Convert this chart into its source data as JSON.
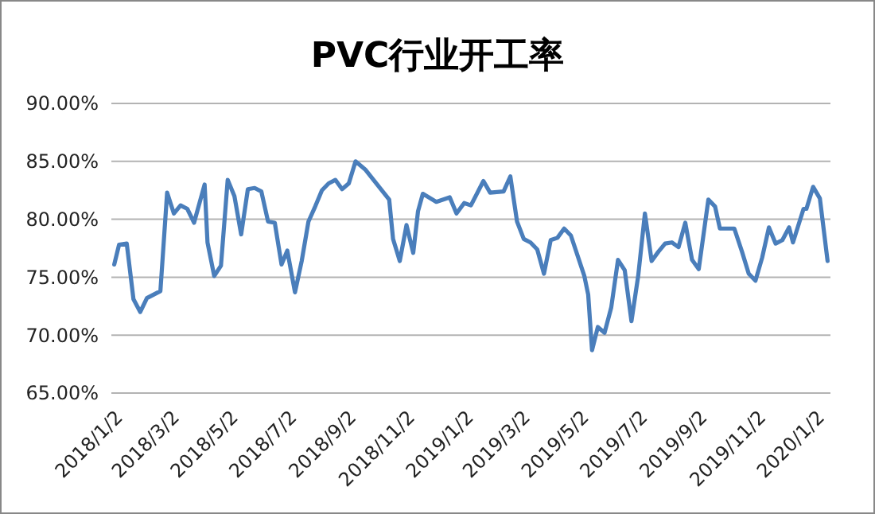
{
  "chart_data": {
    "type": "line",
    "title": "PVC行业开工率",
    "x": [
      "2018-01-02",
      "2018-01-07",
      "2018-01-15",
      "2018-01-22",
      "2018-01-29",
      "2018-02-05",
      "2018-02-19",
      "2018-02-26",
      "2018-03-05",
      "2018-03-12",
      "2018-03-19",
      "2018-03-26",
      "2018-04-06",
      "2018-04-09",
      "2018-04-16",
      "2018-04-23",
      "2018-04-30",
      "2018-05-07",
      "2018-05-14",
      "2018-05-21",
      "2018-05-28",
      "2018-06-04",
      "2018-06-11",
      "2018-06-18",
      "2018-06-25",
      "2018-07-01",
      "2018-07-09",
      "2018-07-16",
      "2018-07-23",
      "2018-07-30",
      "2018-08-06",
      "2018-08-13",
      "2018-08-20",
      "2018-08-27",
      "2018-09-03",
      "2018-09-10",
      "2018-09-20",
      "2018-10-15",
      "2018-10-19",
      "2018-10-26",
      "2018-11-02",
      "2018-11-09",
      "2018-11-14",
      "2018-11-19",
      "2018-12-03",
      "2018-12-17",
      "2018-12-24",
      "2019-01-01",
      "2019-01-08",
      "2019-01-21",
      "2019-01-28",
      "2019-02-11",
      "2019-02-18",
      "2019-02-25",
      "2019-03-04",
      "2019-03-11",
      "2019-03-18",
      "2019-03-25",
      "2019-04-01",
      "2019-04-08",
      "2019-04-15",
      "2019-04-22",
      "2019-05-06",
      "2019-05-10",
      "2019-05-14",
      "2019-05-20",
      "2019-05-27",
      "2019-06-03",
      "2019-06-10",
      "2019-06-17",
      "2019-06-24",
      "2019-07-01",
      "2019-07-08",
      "2019-07-15",
      "2019-07-22",
      "2019-07-29",
      "2019-08-05",
      "2019-08-12",
      "2019-08-19",
      "2019-08-26",
      "2019-09-02",
      "2019-09-12",
      "2019-09-19",
      "2019-09-24",
      "2019-10-09",
      "2019-10-17",
      "2019-10-24",
      "2019-10-31",
      "2019-11-07",
      "2019-11-14",
      "2019-11-21",
      "2019-11-28",
      "2019-12-05",
      "2019-12-09",
      "2019-12-20",
      "2019-12-23",
      "2019-12-30",
      "2020-01-06",
      "2020-01-14"
    ],
    "series": [
      {
        "color": "#4a7ebb",
        "values": [
          76.1,
          77.8,
          77.9,
          73.1,
          72.0,
          73.2,
          73.8,
          82.3,
          80.5,
          81.2,
          80.9,
          79.7,
          83.0,
          78.0,
          75.1,
          76.0,
          83.4,
          82.0,
          78.7,
          82.6,
          82.7,
          82.4,
          79.8,
          79.7,
          76.1,
          77.3,
          73.7,
          76.4,
          79.8,
          81.1,
          82.5,
          83.1,
          83.4,
          82.6,
          83.1,
          85.0,
          84.3,
          81.7,
          78.3,
          76.4,
          79.5,
          77.1,
          80.7,
          82.2,
          81.5,
          81.9,
          80.5,
          81.4,
          81.2,
          83.3,
          82.3,
          82.4,
          83.7,
          79.8,
          78.3,
          78.0,
          77.4,
          75.3,
          78.2,
          78.4,
          79.2,
          78.6,
          75.1,
          73.5,
          68.7,
          70.7,
          70.2,
          72.4,
          76.5,
          75.6,
          71.2,
          75.1,
          80.5,
          76.4,
          77.2,
          77.9,
          78.0,
          77.6,
          79.7,
          76.5,
          75.7,
          81.7,
          81.1,
          79.2,
          79.2,
          77.2,
          75.3,
          74.7,
          76.7,
          79.3,
          77.9,
          78.2,
          79.3,
          78.0,
          80.9,
          80.9,
          82.8,
          81.8,
          76.4
        ]
      }
    ],
    "xlim": [
      "2017-12-30",
      "2020-01-17"
    ],
    "xticks": [
      {
        "value": "2018-01-02",
        "label": "2018/1/2"
      },
      {
        "value": "2018-03-02",
        "label": "2018/3/2"
      },
      {
        "value": "2018-05-02",
        "label": "2018/5/2"
      },
      {
        "value": "2018-07-02",
        "label": "2018/7/2"
      },
      {
        "value": "2018-09-02",
        "label": "2018/9/2"
      },
      {
        "value": "2018-11-02",
        "label": "2018/11/2"
      },
      {
        "value": "2019-01-02",
        "label": "2019/1/2"
      },
      {
        "value": "2019-03-02",
        "label": "2019/3/2"
      },
      {
        "value": "2019-05-02",
        "label": "2019/5/2"
      },
      {
        "value": "2019-07-02",
        "label": "2019/7/2"
      },
      {
        "value": "2019-09-02",
        "label": "2019/9/2"
      },
      {
        "value": "2019-11-02",
        "label": "2019/11/2"
      },
      {
        "value": "2020-01-02",
        "label": "2020/1/2"
      }
    ],
    "ylim": [
      65,
      90
    ],
    "yticks": [
      {
        "value": 65,
        "label": "65.00%"
      },
      {
        "value": 70,
        "label": "70.00%"
      },
      {
        "value": 75,
        "label": "75.00%"
      },
      {
        "value": 80,
        "label": "80.00%"
      },
      {
        "value": 85,
        "label": "85.00%"
      },
      {
        "value": 90,
        "label": "90.00%"
      }
    ],
    "grid": "y",
    "marker": "none",
    "line_style": "solid"
  }
}
